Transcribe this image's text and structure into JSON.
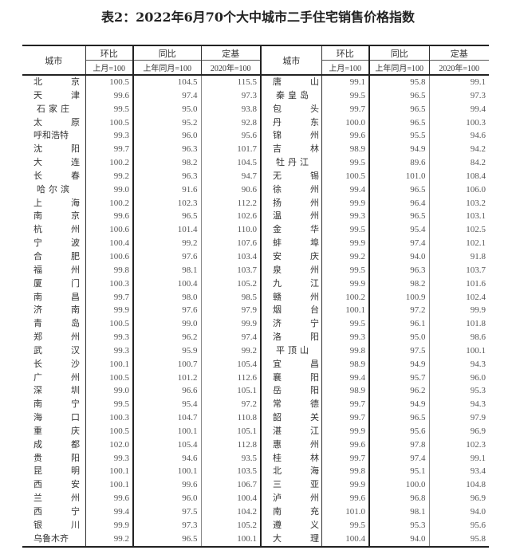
{
  "title": "表2：2022年6月70个大中城市二手住宅销售价格指数",
  "headers": {
    "city": "城市",
    "mom": "环比",
    "yoy": "同比",
    "base": "定基",
    "mom_base": "上月=100",
    "yoy_base": "上年同月=100",
    "base_base": "2020年=100"
  },
  "left": [
    {
      "city": "北京",
      "mom": "100.5",
      "yoy": "104.5",
      "base": "115.5"
    },
    {
      "city": "天津",
      "mom": "99.6",
      "yoy": "97.4",
      "base": "97.3"
    },
    {
      "city": "石家庄",
      "mom": "99.5",
      "yoy": "95.0",
      "base": "93.8"
    },
    {
      "city": "太原",
      "mom": "100.5",
      "yoy": "95.2",
      "base": "92.8"
    },
    {
      "city": "呼和浩特",
      "mom": "99.3",
      "yoy": "96.0",
      "base": "95.6"
    },
    {
      "city": "沈阳",
      "mom": "99.7",
      "yoy": "96.3",
      "base": "101.7"
    },
    {
      "city": "大连",
      "mom": "100.2",
      "yoy": "98.2",
      "base": "104.5"
    },
    {
      "city": "长春",
      "mom": "99.2",
      "yoy": "96.3",
      "base": "94.7"
    },
    {
      "city": "哈尔滨",
      "mom": "99.0",
      "yoy": "91.6",
      "base": "90.6"
    },
    {
      "city": "上海",
      "mom": "100.2",
      "yoy": "102.3",
      "base": "112.2"
    },
    {
      "city": "南京",
      "mom": "99.6",
      "yoy": "96.5",
      "base": "102.6"
    },
    {
      "city": "杭州",
      "mom": "100.6",
      "yoy": "101.4",
      "base": "110.0"
    },
    {
      "city": "宁波",
      "mom": "100.4",
      "yoy": "99.2",
      "base": "107.6"
    },
    {
      "city": "合肥",
      "mom": "100.6",
      "yoy": "97.6",
      "base": "103.4"
    },
    {
      "city": "福州",
      "mom": "99.8",
      "yoy": "98.1",
      "base": "103.7"
    },
    {
      "city": "厦门",
      "mom": "100.3",
      "yoy": "100.4",
      "base": "105.2"
    },
    {
      "city": "南昌",
      "mom": "99.7",
      "yoy": "98.0",
      "base": "98.5"
    },
    {
      "city": "济南",
      "mom": "99.9",
      "yoy": "97.6",
      "base": "97.9"
    },
    {
      "city": "青岛",
      "mom": "100.5",
      "yoy": "99.0",
      "base": "99.9"
    },
    {
      "city": "郑州",
      "mom": "99.3",
      "yoy": "96.2",
      "base": "97.4"
    },
    {
      "city": "武汉",
      "mom": "99.3",
      "yoy": "95.9",
      "base": "99.2"
    },
    {
      "city": "长沙",
      "mom": "100.1",
      "yoy": "100.7",
      "base": "105.4"
    },
    {
      "city": "广州",
      "mom": "100.5",
      "yoy": "101.2",
      "base": "112.6"
    },
    {
      "city": "深圳",
      "mom": "99.0",
      "yoy": "96.6",
      "base": "105.1"
    },
    {
      "city": "南宁",
      "mom": "99.5",
      "yoy": "95.4",
      "base": "97.2"
    },
    {
      "city": "海口",
      "mom": "100.3",
      "yoy": "104.7",
      "base": "110.8"
    },
    {
      "city": "重庆",
      "mom": "100.5",
      "yoy": "100.1",
      "base": "105.1"
    },
    {
      "city": "成都",
      "mom": "102.0",
      "yoy": "105.4",
      "base": "112.8"
    },
    {
      "city": "贵阳",
      "mom": "99.3",
      "yoy": "94.6",
      "base": "93.5"
    },
    {
      "city": "昆明",
      "mom": "100.1",
      "yoy": "100.1",
      "base": "103.5"
    },
    {
      "city": "西安",
      "mom": "100.1",
      "yoy": "99.6",
      "base": "106.7"
    },
    {
      "city": "兰州",
      "mom": "99.6",
      "yoy": "96.0",
      "base": "100.4"
    },
    {
      "city": "西宁",
      "mom": "99.4",
      "yoy": "97.5",
      "base": "104.2"
    },
    {
      "city": "银川",
      "mom": "99.9",
      "yoy": "97.3",
      "base": "105.2"
    },
    {
      "city": "乌鲁木齐",
      "mom": "99.2",
      "yoy": "96.5",
      "base": "100.1"
    }
  ],
  "right": [
    {
      "city": "唐山",
      "mom": "99.1",
      "yoy": "95.8",
      "base": "99.1"
    },
    {
      "city": "秦皇岛",
      "mom": "99.5",
      "yoy": "96.5",
      "base": "97.3"
    },
    {
      "city": "包头",
      "mom": "99.7",
      "yoy": "96.5",
      "base": "99.4"
    },
    {
      "city": "丹东",
      "mom": "100.0",
      "yoy": "96.5",
      "base": "100.3"
    },
    {
      "city": "锦州",
      "mom": "99.6",
      "yoy": "95.5",
      "base": "94.6"
    },
    {
      "city": "吉林",
      "mom": "98.9",
      "yoy": "94.9",
      "base": "94.2"
    },
    {
      "city": "牡丹江",
      "mom": "99.5",
      "yoy": "89.6",
      "base": "84.2"
    },
    {
      "city": "无锡",
      "mom": "100.5",
      "yoy": "101.0",
      "base": "108.4"
    },
    {
      "city": "徐州",
      "mom": "99.4",
      "yoy": "96.5",
      "base": "106.0"
    },
    {
      "city": "扬州",
      "mom": "99.9",
      "yoy": "96.4",
      "base": "103.2"
    },
    {
      "city": "温州",
      "mom": "99.3",
      "yoy": "96.5",
      "base": "103.1"
    },
    {
      "city": "金华",
      "mom": "99.5",
      "yoy": "95.4",
      "base": "102.5"
    },
    {
      "city": "蚌埠",
      "mom": "99.9",
      "yoy": "97.4",
      "base": "102.1"
    },
    {
      "city": "安庆",
      "mom": "99.2",
      "yoy": "94.0",
      "base": "91.8"
    },
    {
      "city": "泉州",
      "mom": "99.5",
      "yoy": "96.3",
      "base": "103.7"
    },
    {
      "city": "九江",
      "mom": "99.9",
      "yoy": "98.2",
      "base": "101.6"
    },
    {
      "city": "赣州",
      "mom": "100.2",
      "yoy": "100.9",
      "base": "102.4"
    },
    {
      "city": "烟台",
      "mom": "100.1",
      "yoy": "97.2",
      "base": "99.9"
    },
    {
      "city": "济宁",
      "mom": "99.5",
      "yoy": "96.1",
      "base": "101.8"
    },
    {
      "city": "洛阳",
      "mom": "99.3",
      "yoy": "95.0",
      "base": "98.6"
    },
    {
      "city": "平顶山",
      "mom": "99.8",
      "yoy": "97.5",
      "base": "100.1"
    },
    {
      "city": "宜昌",
      "mom": "98.9",
      "yoy": "94.9",
      "base": "94.3"
    },
    {
      "city": "襄阳",
      "mom": "99.4",
      "yoy": "95.7",
      "base": "96.0"
    },
    {
      "city": "岳阳",
      "mom": "98.9",
      "yoy": "96.2",
      "base": "95.3"
    },
    {
      "city": "常德",
      "mom": "99.7",
      "yoy": "94.9",
      "base": "94.3"
    },
    {
      "city": "韶关",
      "mom": "99.7",
      "yoy": "96.5",
      "base": "97.9"
    },
    {
      "city": "湛江",
      "mom": "99.9",
      "yoy": "95.6",
      "base": "96.9"
    },
    {
      "city": "惠州",
      "mom": "99.6",
      "yoy": "97.8",
      "base": "102.3"
    },
    {
      "city": "桂林",
      "mom": "99.7",
      "yoy": "97.4",
      "base": "99.1"
    },
    {
      "city": "北海",
      "mom": "99.8",
      "yoy": "95.1",
      "base": "93.4"
    },
    {
      "city": "三亚",
      "mom": "99.9",
      "yoy": "100.0",
      "base": "104.8"
    },
    {
      "city": "泸州",
      "mom": "99.6",
      "yoy": "96.8",
      "base": "96.9"
    },
    {
      "city": "南充",
      "mom": "101.0",
      "yoy": "98.1",
      "base": "94.0"
    },
    {
      "city": "遵义",
      "mom": "99.5",
      "yoy": "95.3",
      "base": "95.6"
    },
    {
      "city": "大理",
      "mom": "100.4",
      "yoy": "94.0",
      "base": "95.8"
    }
  ]
}
